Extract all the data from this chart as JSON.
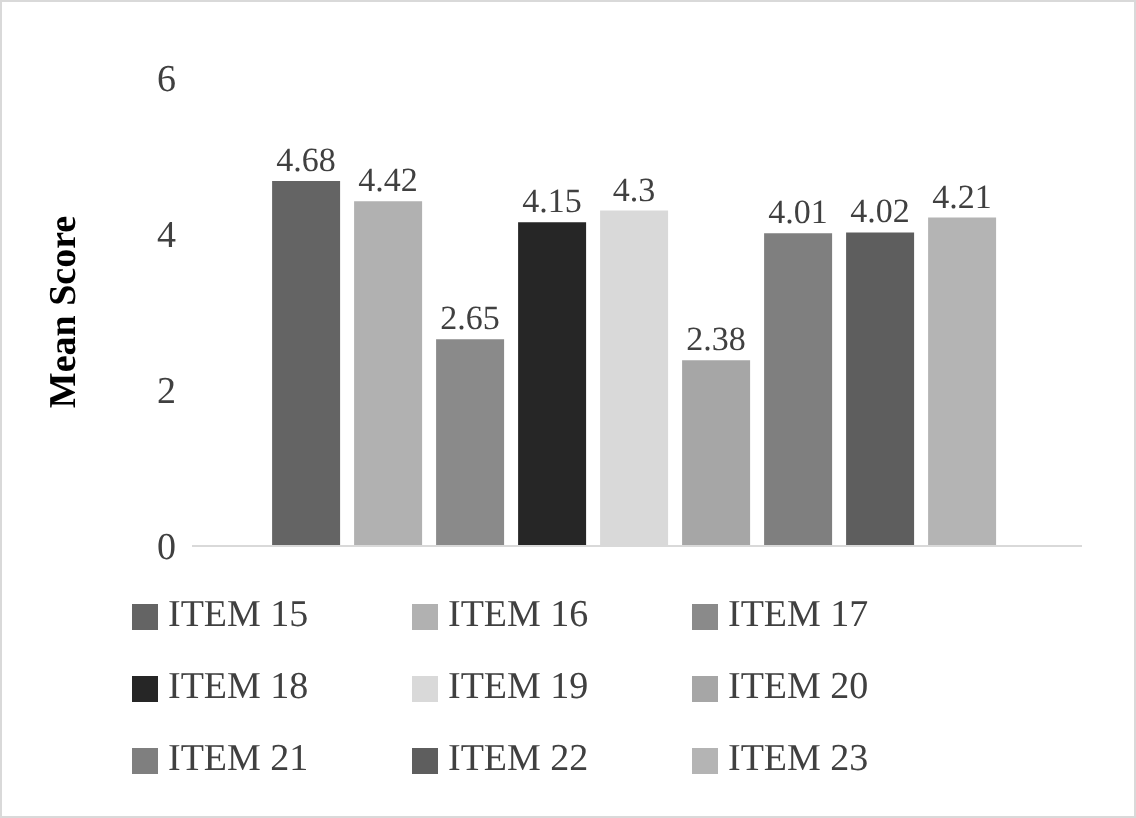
{
  "chart_data": {
    "type": "bar",
    "ylabel": "Mean Score",
    "categories": [
      null
    ],
    "series": [
      {
        "name": "ITEM 15",
        "color": "#646464",
        "values": [
          4.68
        ]
      },
      {
        "name": "ITEM 16",
        "color": "#b1b1b1",
        "values": [
          4.42
        ]
      },
      {
        "name": "ITEM 17",
        "color": "#8a8a8a",
        "values": [
          2.65
        ]
      },
      {
        "name": "ITEM 18",
        "color": "#262626",
        "values": [
          4.15
        ]
      },
      {
        "name": "ITEM 19",
        "color": "#d9d9d9",
        "values": [
          4.3
        ]
      },
      {
        "name": "ITEM 20",
        "color": "#a6a6a6",
        "values": [
          2.38
        ]
      },
      {
        "name": "ITEM 21",
        "color": "#7f7f7f",
        "values": [
          4.01
        ]
      },
      {
        "name": "ITEM 22",
        "color": "#5e5e5e",
        "values": [
          4.02
        ]
      },
      {
        "name": "ITEM 23",
        "color": "#b4b4b4",
        "values": [
          4.21
        ]
      }
    ],
    "ylim": [
      0,
      6
    ],
    "yticks": [
      0,
      2,
      4,
      6
    ],
    "grid": false,
    "legend": "bottom",
    "data_labels": true
  }
}
